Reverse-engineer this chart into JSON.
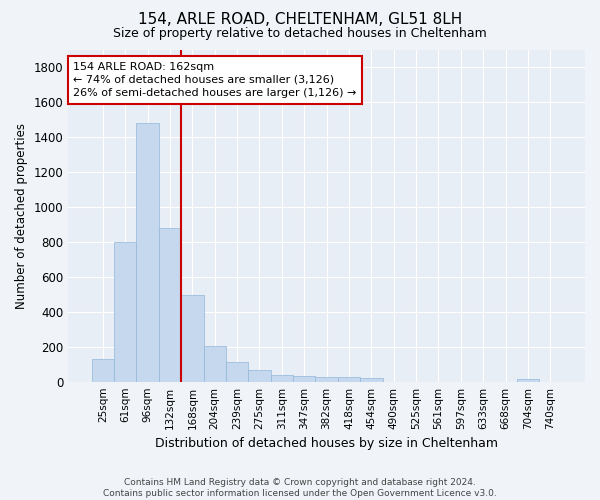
{
  "title": "154, ARLE ROAD, CHELTENHAM, GL51 8LH",
  "subtitle": "Size of property relative to detached houses in Cheltenham",
  "xlabel": "Distribution of detached houses by size in Cheltenham",
  "ylabel": "Number of detached properties",
  "categories": [
    "25sqm",
    "61sqm",
    "96sqm",
    "132sqm",
    "168sqm",
    "204sqm",
    "239sqm",
    "275sqm",
    "311sqm",
    "347sqm",
    "382sqm",
    "418sqm",
    "454sqm",
    "490sqm",
    "525sqm",
    "561sqm",
    "597sqm",
    "633sqm",
    "668sqm",
    "704sqm",
    "740sqm"
  ],
  "values": [
    130,
    800,
    1480,
    880,
    495,
    205,
    110,
    65,
    40,
    30,
    25,
    25,
    20,
    0,
    0,
    0,
    0,
    0,
    0,
    15,
    0
  ],
  "bar_color": "#c5d8ed",
  "bar_edge_color": "#92b8d8",
  "vline_color": "#cc0000",
  "annotation_text": "154 ARLE ROAD: 162sqm\n← 74% of detached houses are smaller (3,126)\n26% of semi-detached houses are larger (1,126) →",
  "annotation_box_color": "#ffffff",
  "annotation_box_edge": "#cc0000",
  "ylim": [
    0,
    1900
  ],
  "yticks": [
    0,
    200,
    400,
    600,
    800,
    1000,
    1200,
    1400,
    1600,
    1800
  ],
  "footer": "Contains HM Land Registry data © Crown copyright and database right 2024.\nContains public sector information licensed under the Open Government Licence v3.0.",
  "bg_color": "#f0f4f8",
  "plot_bg_color": "#e8eef5"
}
